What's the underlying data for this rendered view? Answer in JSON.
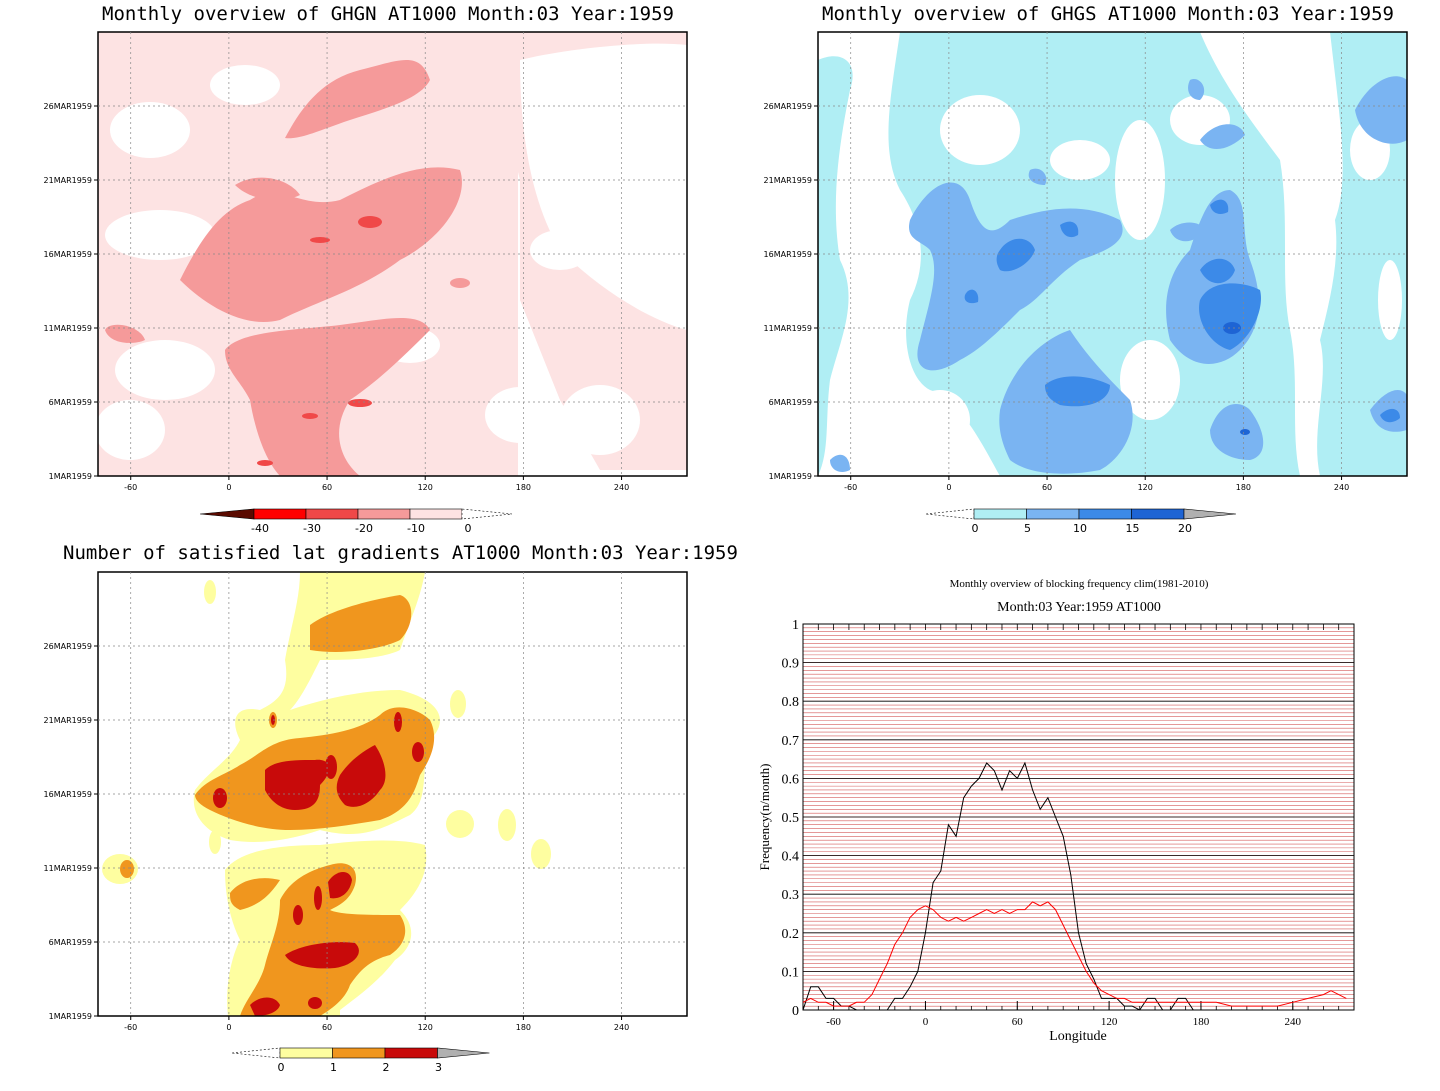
{
  "panels": {
    "ghgn": {
      "title": "Monthly overview of GHGN AT1000 Month:03 Year:1959",
      "x_ticks": [
        "-60",
        "0",
        "60",
        "120",
        "180",
        "240"
      ],
      "y_ticks": [
        "1MAR1959",
        "6MAR1959",
        "11MAR1959",
        "16MAR1959",
        "21MAR1959",
        "26MAR1959"
      ],
      "colorbar": {
        "labels": [
          "-40",
          "-30",
          "-20",
          "-10",
          "0"
        ],
        "colors": [
          "#5a0a00",
          "#ff0000",
          "#f04848",
          "#f59a9a",
          "#fde3e3"
        ]
      }
    },
    "ghgs": {
      "title": "Monthly overview of GHGS AT1000 Month:03 Year:1959",
      "x_ticks": [
        "-60",
        "0",
        "60",
        "120",
        "180",
        "240"
      ],
      "y_ticks": [
        "1MAR1959",
        "6MAR1959",
        "11MAR1959",
        "16MAR1959",
        "21MAR1959",
        "26MAR1959"
      ],
      "colorbar": {
        "labels": [
          "0",
          "5",
          "10",
          "15",
          "20"
        ],
        "colors": [
          "#b0eef4",
          "#7ab4f2",
          "#3c8ae8",
          "#1e64d4",
          "#b0b0b0"
        ]
      }
    },
    "lat_gradients": {
      "title": "Number of satisfied lat gradients AT1000 Month:03 Year:1959",
      "x_ticks": [
        "-60",
        "0",
        "60",
        "120",
        "180",
        "240"
      ],
      "y_ticks": [
        "1MAR1959",
        "6MAR1959",
        "11MAR1959",
        "16MAR1959",
        "21MAR1959",
        "26MAR1959"
      ],
      "colorbar": {
        "labels": [
          "0",
          "1",
          "2",
          "3"
        ],
        "colors": [
          "#fefea0",
          "#f0961e",
          "#c80a0a",
          "#b0b0b0"
        ]
      }
    }
  },
  "chart_data": {
    "type": "line",
    "title": "Monthly overview of blocking frequency clim(1981-2010)",
    "subtitle": "Month:03 Year:1959  AT1000",
    "xlabel": "Longitude",
    "ylabel": "Frequency(n/month)",
    "xlim": [
      -80,
      280
    ],
    "ylim": [
      0,
      1
    ],
    "x_ticks": [
      "-60",
      "0",
      "60",
      "120",
      "180",
      "240"
    ],
    "y_ticks": [
      "0",
      "0.1",
      "0.2",
      "0.3",
      "0.4",
      "0.5",
      "0.6",
      "0.7",
      "0.8",
      "0.9",
      "1"
    ],
    "grid": true,
    "series": [
      {
        "color": "#000000",
        "x": [
          -80,
          -75,
          -70,
          -65,
          -60,
          -55,
          -50,
          -45,
          -40,
          -35,
          -30,
          -25,
          -20,
          -15,
          -10,
          -5,
          0,
          5,
          10,
          15,
          20,
          25,
          30,
          35,
          40,
          45,
          50,
          55,
          60,
          65,
          70,
          75,
          80,
          85,
          90,
          95,
          100,
          105,
          110,
          115,
          120,
          125,
          130,
          135,
          140,
          145,
          150,
          155,
          160,
          165,
          170,
          175,
          180,
          185,
          190,
          195,
          200,
          205,
          210,
          215,
          220,
          230,
          240,
          250,
          260,
          270,
          275
        ],
        "values": [
          0,
          0.06,
          0.06,
          0.03,
          0.03,
          0.01,
          0.01,
          0,
          0,
          0,
          0,
          0,
          0.03,
          0.03,
          0.06,
          0.1,
          0.2,
          0.33,
          0.36,
          0.48,
          0.45,
          0.55,
          0.58,
          0.6,
          0.64,
          0.62,
          0.57,
          0.62,
          0.6,
          0.64,
          0.57,
          0.52,
          0.55,
          0.5,
          0.45,
          0.35,
          0.2,
          0.12,
          0.08,
          0.03,
          0.03,
          0.03,
          0.01,
          0.01,
          0,
          0.03,
          0.03,
          0,
          0,
          0.03,
          0.03,
          0,
          0,
          0,
          0,
          0,
          0,
          0,
          0,
          0,
          0,
          0,
          0,
          0,
          0,
          0,
          0
        ]
      },
      {
        "color": "#ff0000",
        "x": [
          -80,
          -75,
          -70,
          -65,
          -60,
          -55,
          -50,
          -45,
          -40,
          -35,
          -30,
          -25,
          -20,
          -15,
          -10,
          -5,
          0,
          5,
          10,
          15,
          20,
          25,
          30,
          35,
          40,
          45,
          50,
          55,
          60,
          65,
          70,
          75,
          80,
          85,
          90,
          95,
          100,
          105,
          110,
          115,
          120,
          125,
          130,
          135,
          140,
          145,
          150,
          160,
          170,
          180,
          190,
          200,
          210,
          220,
          230,
          240,
          250,
          260,
          265,
          270,
          275
        ],
        "values": [
          0.02,
          0.03,
          0.02,
          0.02,
          0.01,
          0.01,
          0.01,
          0.02,
          0.02,
          0.04,
          0.08,
          0.12,
          0.17,
          0.2,
          0.24,
          0.26,
          0.27,
          0.26,
          0.24,
          0.23,
          0.24,
          0.23,
          0.24,
          0.25,
          0.26,
          0.25,
          0.26,
          0.25,
          0.26,
          0.26,
          0.28,
          0.27,
          0.28,
          0.26,
          0.22,
          0.18,
          0.14,
          0.1,
          0.07,
          0.05,
          0.04,
          0.03,
          0.03,
          0.02,
          0.02,
          0.02,
          0.02,
          0.02,
          0.02,
          0.02,
          0.02,
          0.01,
          0.01,
          0.01,
          0.01,
          0.02,
          0.03,
          0.04,
          0.05,
          0.04,
          0.03
        ]
      }
    ]
  }
}
